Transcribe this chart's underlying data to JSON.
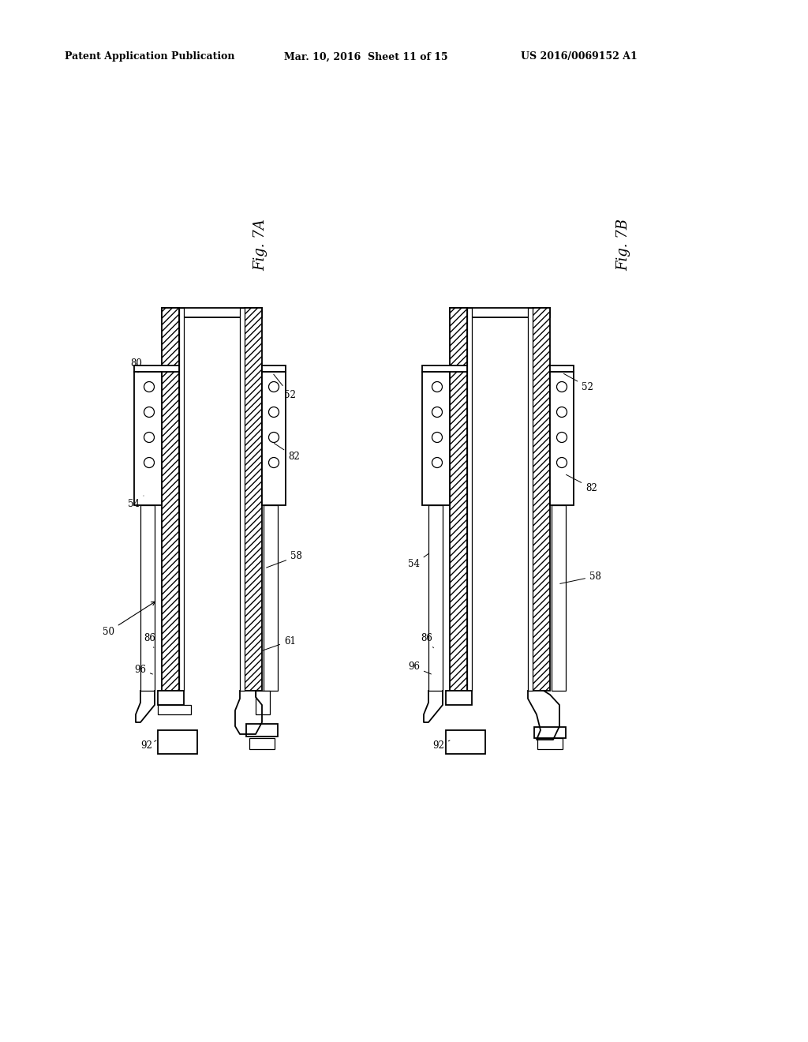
{
  "background_color": "#ffffff",
  "header_left": "Patent Application Publication",
  "header_mid": "Mar. 10, 2016  Sheet 11 of 15",
  "header_right": "US 2016/0069152 A1",
  "fig_label_A": "Fig. 7A",
  "fig_label_B": "Fig. 7B"
}
